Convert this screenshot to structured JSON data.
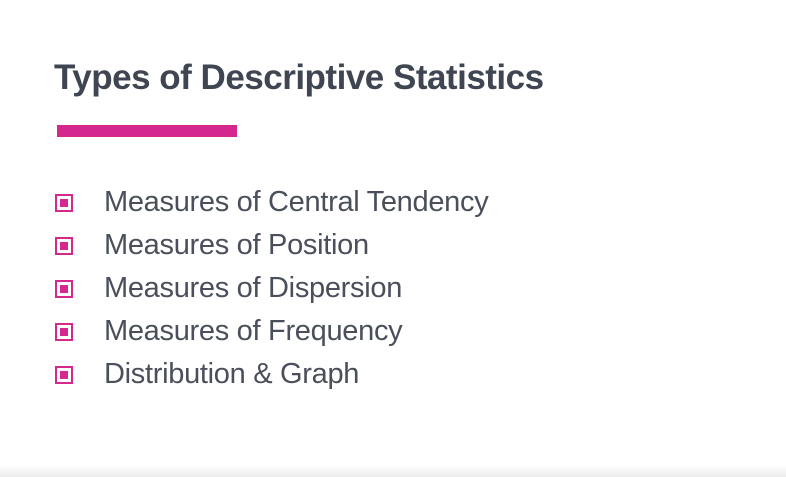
{
  "slide": {
    "title": "Types of Descriptive Statistics",
    "bullets": [
      {
        "label": "Measures of Central Tendency",
        "icon": "square-bullet-icon"
      },
      {
        "label": "Measures of Position",
        "icon": "square-bullet-icon"
      },
      {
        "label": "Measures of Dispersion",
        "icon": "square-bullet-icon"
      },
      {
        "label": "Measures of Frequency",
        "icon": "square-bullet-icon"
      },
      {
        "label": "Distribution & Graph",
        "icon": "square-bullet-icon"
      }
    ]
  },
  "colors": {
    "accent": "#d4288f",
    "title_text": "#3f4551",
    "body_text": "#4a4f5b",
    "background": "#ffffff"
  }
}
